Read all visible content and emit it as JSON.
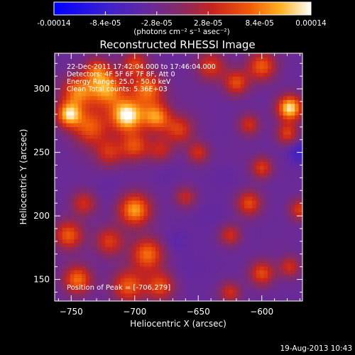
{
  "chart_data": {
    "type": "heatmap",
    "title": "Reconstructed RHESSI Image",
    "xlabel": "Heliocentric X (arcsec)",
    "ylabel": "Heliocentric Y (arcsec)",
    "xlim": [
      -763,
      -568
    ],
    "ylim": [
      133,
      328
    ],
    "xticks": [
      -750,
      -700,
      -650,
      -600
    ],
    "yticks": [
      150,
      200,
      250,
      300
    ],
    "colorbar": {
      "ticks": [
        "-0.00014",
        "-8.4e-05",
        "-2.8e-05",
        "2.8e-05",
        "8.4e-05",
        "0.00014"
      ],
      "unit": "(photons cm⁻² s⁻¹ asec⁻²)",
      "range": [
        -0.00014,
        0.00014
      ]
    },
    "annotations": [
      "22-Dec-2011 17:42:04.000 to 17:46:04.000",
      "Detectors: 4F 5F 6F 7F 8F, Att 0",
      "Energy Range: 25.0 - 50.0 keV",
      "Clean     Total counts: 5.36E+03"
    ],
    "peak_label": "Position of Peak = [-706,279]",
    "peak": [
      -706,
      279
    ],
    "sources": [
      {
        "x": -706,
        "y": 279,
        "v": 0.00014,
        "r": 9
      },
      {
        "x": -722,
        "y": 300,
        "v": 0.0001,
        "r": 10
      },
      {
        "x": -745,
        "y": 298,
        "v": 8e-05,
        "r": 9
      },
      {
        "x": -752,
        "y": 280,
        "v": 0.00011,
        "r": 7
      },
      {
        "x": -735,
        "y": 270,
        "v": 7e-05,
        "r": 10
      },
      {
        "x": -690,
        "y": 300,
        "v": 8e-05,
        "r": 9
      },
      {
        "x": -683,
        "y": 278,
        "v": 9e-05,
        "r": 8
      },
      {
        "x": -665,
        "y": 268,
        "v": 5e-05,
        "r": 8
      },
      {
        "x": -700,
        "y": 255,
        "v": 6e-05,
        "r": 8
      },
      {
        "x": -720,
        "y": 250,
        "v": 4e-05,
        "r": 8
      },
      {
        "x": -680,
        "y": 252,
        "v": 3e-05,
        "r": 7
      },
      {
        "x": -640,
        "y": 318,
        "v": 5e-05,
        "r": 8
      },
      {
        "x": -620,
        "y": 305,
        "v": 6e-05,
        "r": 7
      },
      {
        "x": -600,
        "y": 318,
        "v": 7e-05,
        "r": 8
      },
      {
        "x": -578,
        "y": 285,
        "v": 0.00013,
        "r": 7
      },
      {
        "x": -610,
        "y": 272,
        "v": 4e-05,
        "r": 6
      },
      {
        "x": -580,
        "y": 265,
        "v": 5e-05,
        "r": 6
      },
      {
        "x": -650,
        "y": 250,
        "v": 4e-05,
        "r": 6
      },
      {
        "x": -600,
        "y": 238,
        "v": 5e-05,
        "r": 6
      },
      {
        "x": -610,
        "y": 210,
        "v": 6e-05,
        "r": 7
      },
      {
        "x": -570,
        "y": 205,
        "v": 5e-05,
        "r": 6
      },
      {
        "x": -625,
        "y": 185,
        "v": 4e-05,
        "r": 6
      },
      {
        "x": -600,
        "y": 155,
        "v": 6e-05,
        "r": 7
      },
      {
        "x": -578,
        "y": 160,
        "v": 4e-05,
        "r": 6
      },
      {
        "x": -625,
        "y": 140,
        "v": 4e-05,
        "r": 6
      },
      {
        "x": -700,
        "y": 205,
        "v": 0.0001,
        "r": 9
      },
      {
        "x": -690,
        "y": 170,
        "v": 8e-05,
        "r": 9
      },
      {
        "x": -705,
        "y": 145,
        "v": 7e-05,
        "r": 9
      },
      {
        "x": -720,
        "y": 180,
        "v": 5e-05,
        "r": 8
      },
      {
        "x": -680,
        "y": 145,
        "v": 6e-05,
        "r": 8
      },
      {
        "x": -752,
        "y": 185,
        "v": 7e-05,
        "r": 8
      },
      {
        "x": -745,
        "y": 150,
        "v": 8e-05,
        "r": 8
      },
      {
        "x": -740,
        "y": 210,
        "v": 4e-05,
        "r": 7
      },
      {
        "x": -660,
        "y": 215,
        "v": 3e-05,
        "r": 6
      },
      {
        "x": -730,
        "y": 315,
        "v": 5e-05,
        "r": 7
      },
      {
        "x": -700,
        "y": 320,
        "v": 5e-05,
        "r": 7
      },
      {
        "x": -660,
        "y": 300,
        "v": -3e-05,
        "r": 8
      },
      {
        "x": -640,
        "y": 200,
        "v": -4e-05,
        "r": 10
      },
      {
        "x": -655,
        "y": 160,
        "v": -4e-05,
        "r": 10
      },
      {
        "x": -620,
        "y": 250,
        "v": -3e-05,
        "r": 10
      },
      {
        "x": -570,
        "y": 250,
        "v": -8e-05,
        "r": 6
      },
      {
        "x": -740,
        "y": 245,
        "v": -3e-05,
        "r": 10
      },
      {
        "x": -720,
        "y": 220,
        "v": -4e-05,
        "r": 9
      },
      {
        "x": -650,
        "y": 280,
        "v": -3e-05,
        "r": 8
      },
      {
        "x": -590,
        "y": 180,
        "v": -3e-05,
        "r": 8
      },
      {
        "x": -668,
        "y": 180,
        "v": -5e-05,
        "r": 6
      },
      {
        "x": -675,
        "y": 235,
        "v": -4e-05,
        "r": 7
      },
      {
        "x": -630,
        "y": 230,
        "v": -4e-05,
        "r": 7
      }
    ],
    "background": -3.4e-05
  },
  "footer": {
    "timestamp": "19-Aug-2013 10:43"
  }
}
